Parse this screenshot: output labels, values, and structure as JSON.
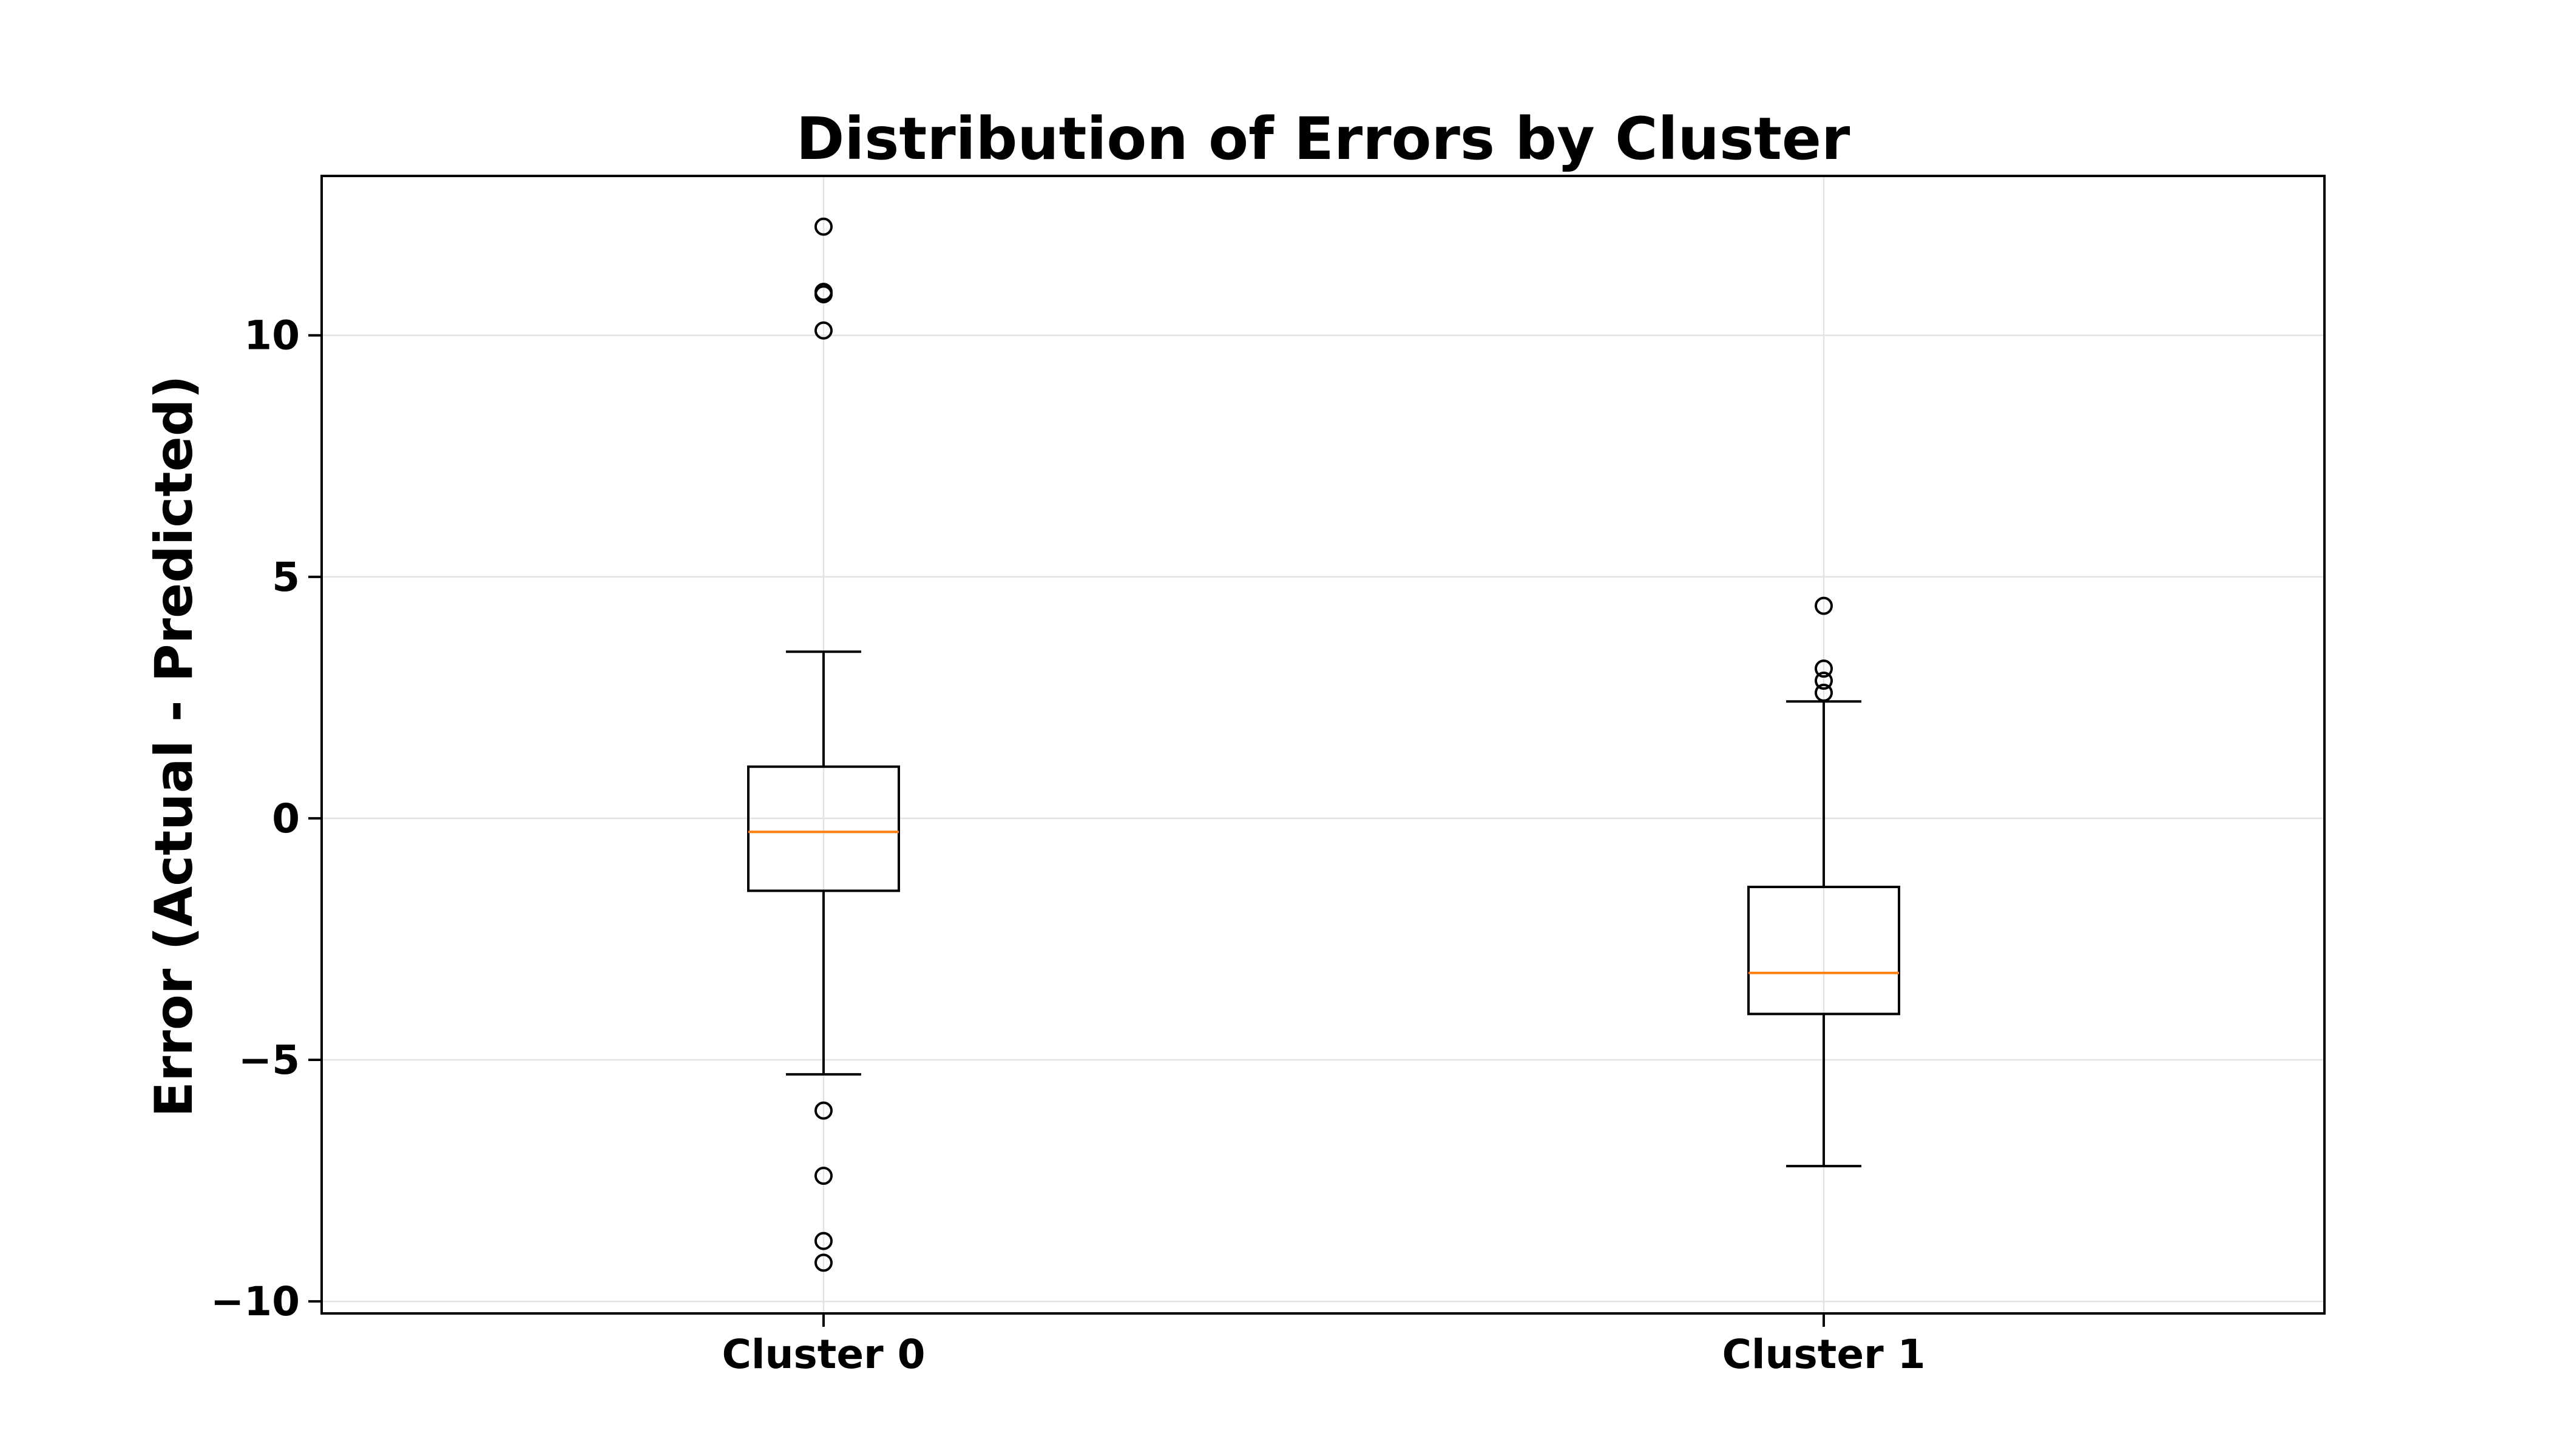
{
  "chart_data": {
    "type": "box",
    "title": "Distribution of Errors by Cluster",
    "xlabel": "",
    "ylabel": "Error (Actual - Predicted)",
    "ylim": [
      -10.25,
      13.3
    ],
    "yticks": [
      -10,
      -5,
      0,
      5,
      10
    ],
    "ytick_labels": [
      "−10",
      "−5",
      "0",
      "5",
      "10"
    ],
    "grid": true,
    "categories": [
      "Cluster 0",
      "Cluster 1"
    ],
    "boxes": [
      {
        "name": "Cluster 0",
        "whisker_low": -5.3,
        "q1": -1.5,
        "median": -0.28,
        "q3": 1.07,
        "whisker_high": 3.45,
        "outliers": [
          12.25,
          10.85,
          10.9,
          10.1,
          -6.05,
          -7.4,
          -8.75,
          -9.2
        ]
      },
      {
        "name": "Cluster 1",
        "whisker_low": -7.2,
        "q1": -4.05,
        "median": -3.2,
        "q3": -1.42,
        "whisker_high": 2.42,
        "outliers": [
          4.4,
          3.1,
          2.85,
          2.6
        ]
      }
    ],
    "colors": {
      "box": "#000000",
      "median": "#ff7f0e",
      "grid": "#e3e3e3"
    }
  }
}
